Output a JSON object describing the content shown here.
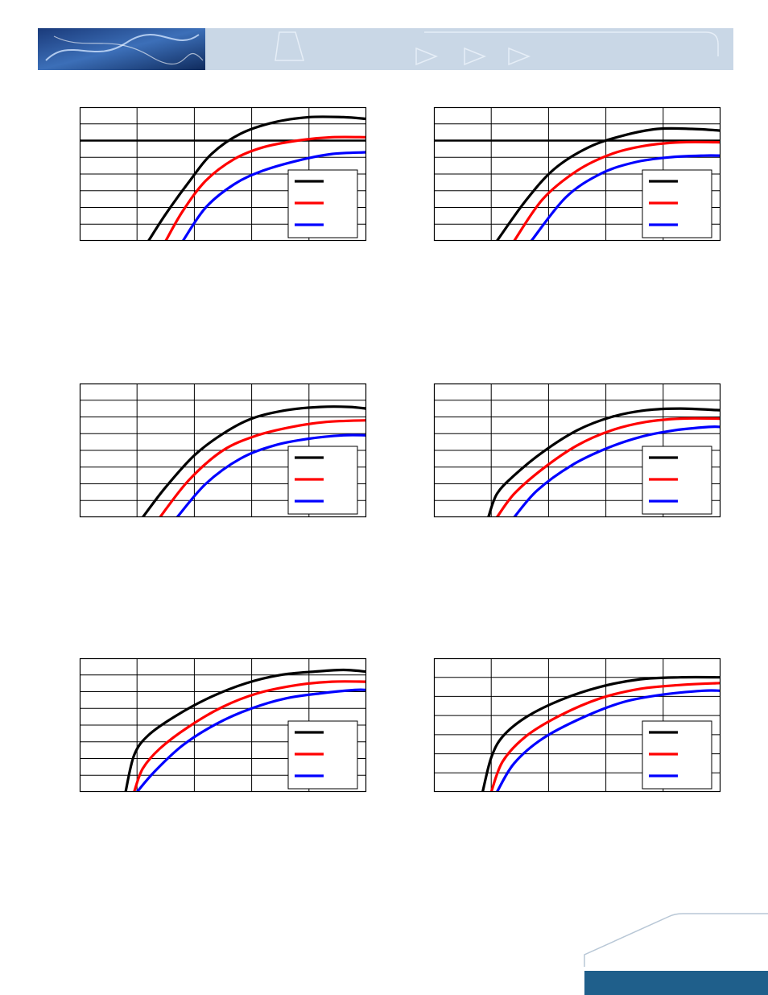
{
  "page": {
    "accent": "#1f5f8b",
    "banner_light": "#c7d6e6"
  },
  "series_colors": {
    "black": "#000000",
    "red": "#ff0000",
    "blue": "#0000ff"
  },
  "chart_data": [
    {
      "id": "chart-1",
      "type": "line",
      "xlim": [
        0,
        5
      ],
      "ylim": [
        0,
        8
      ],
      "x_divisions": 5,
      "y_divisions": 8,
      "reference_line": 6,
      "grid": true,
      "legend": "bottom-right",
      "series": [
        {
          "color": "black",
          "x": [
            1.2,
            1.5,
            1.9,
            2.3,
            2.8,
            3.4,
            4.0,
            4.6,
            5.0
          ],
          "y": [
            0,
            1.6,
            3.5,
            5.2,
            6.4,
            7.1,
            7.4,
            7.4,
            7.3
          ]
        },
        {
          "color": "red",
          "x": [
            1.5,
            1.8,
            2.2,
            2.7,
            3.2,
            3.8,
            4.4,
            5.0
          ],
          "y": [
            0,
            1.8,
            3.6,
            4.9,
            5.6,
            6.0,
            6.2,
            6.2
          ]
        },
        {
          "color": "blue",
          "x": [
            1.8,
            2.2,
            2.7,
            3.2,
            3.8,
            4.4,
            5.0
          ],
          "y": [
            0,
            2.0,
            3.4,
            4.2,
            4.8,
            5.2,
            5.3
          ]
        }
      ]
    },
    {
      "id": "chart-2",
      "type": "line",
      "xlim": [
        0,
        5
      ],
      "ylim": [
        0,
        8
      ],
      "x_divisions": 5,
      "y_divisions": 8,
      "reference_line": 6,
      "grid": true,
      "legend": "bottom-right",
      "series": [
        {
          "color": "black",
          "x": [
            1.1,
            1.6,
            2.1,
            2.7,
            3.3,
            3.9,
            4.5,
            5.0
          ],
          "y": [
            0,
            2.4,
            4.3,
            5.6,
            6.3,
            6.7,
            6.7,
            6.6
          ]
        },
        {
          "color": "red",
          "x": [
            1.4,
            1.9,
            2.5,
            3.1,
            3.7,
            4.3,
            5.0
          ],
          "y": [
            0,
            2.5,
            4.2,
            5.2,
            5.7,
            5.9,
            5.9
          ]
        },
        {
          "color": "blue",
          "x": [
            1.7,
            2.3,
            2.9,
            3.5,
            4.1,
            4.7,
            5.0
          ],
          "y": [
            0,
            2.6,
            4.0,
            4.7,
            5.0,
            5.1,
            5.1
          ]
        }
      ]
    },
    {
      "id": "chart-3",
      "type": "line",
      "xlim": [
        0,
        5
      ],
      "ylim": [
        0,
        8
      ],
      "x_divisions": 5,
      "y_divisions": 8,
      "grid": true,
      "legend": "bottom-right",
      "series": [
        {
          "color": "black",
          "x": [
            1.1,
            1.5,
            2.0,
            2.5,
            3.0,
            3.6,
            4.2,
            4.7,
            5.0
          ],
          "y": [
            0,
            1.8,
            3.7,
            5.0,
            5.9,
            6.4,
            6.6,
            6.6,
            6.5
          ]
        },
        {
          "color": "red",
          "x": [
            1.4,
            1.9,
            2.5,
            3.1,
            3.7,
            4.3,
            5.0
          ],
          "y": [
            0,
            2.2,
            4.0,
            4.9,
            5.4,
            5.7,
            5.8
          ]
        },
        {
          "color": "blue",
          "x": [
            1.7,
            2.2,
            2.8,
            3.4,
            4.0,
            4.6,
            5.0
          ],
          "y": [
            0,
            2.0,
            3.5,
            4.3,
            4.7,
            4.9,
            4.9
          ]
        }
      ]
    },
    {
      "id": "chart-4",
      "type": "line",
      "xlim": [
        0,
        5
      ],
      "ylim": [
        0,
        8
      ],
      "x_divisions": 5,
      "y_divisions": 8,
      "grid": true,
      "legend": "bottom-right",
      "series": [
        {
          "color": "black",
          "x": [
            0.95,
            1.1,
            1.4,
            1.9,
            2.5,
            3.1,
            3.7,
            4.3,
            5.0
          ],
          "y": [
            0,
            1.4,
            2.5,
            3.9,
            5.2,
            6.0,
            6.4,
            6.5,
            6.4
          ]
        },
        {
          "color": "red",
          "x": [
            1.1,
            1.4,
            1.9,
            2.5,
            3.1,
            3.7,
            4.3,
            5.0
          ],
          "y": [
            0,
            1.4,
            2.9,
            4.3,
            5.2,
            5.7,
            5.9,
            5.9
          ]
        },
        {
          "color": "blue",
          "x": [
            1.4,
            1.8,
            2.4,
            3.0,
            3.6,
            4.2,
            4.8,
            5.0
          ],
          "y": [
            0,
            1.6,
            3.1,
            4.1,
            4.8,
            5.2,
            5.4,
            5.4
          ]
        }
      ]
    },
    {
      "id": "chart-5",
      "type": "line",
      "xlim": [
        0,
        5
      ],
      "ylim": [
        0,
        8
      ],
      "x_divisions": 5,
      "y_divisions": 8,
      "grid": true,
      "legend": "bottom-right",
      "series": [
        {
          "color": "black",
          "x": [
            0.8,
            0.95,
            1.2,
            1.7,
            2.3,
            2.9,
            3.5,
            4.1,
            4.6,
            5.0
          ],
          "y": [
            0,
            2.2,
            3.4,
            4.6,
            5.7,
            6.5,
            7.0,
            7.2,
            7.3,
            7.2
          ]
        },
        {
          "color": "red",
          "x": [
            0.95,
            1.1,
            1.4,
            1.9,
            2.5,
            3.1,
            3.8,
            4.4,
            5.0
          ],
          "y": [
            0,
            1.4,
            2.6,
            3.9,
            5.1,
            5.9,
            6.4,
            6.6,
            6.6
          ]
        },
        {
          "color": "blue",
          "x": [
            1.0,
            1.3,
            1.8,
            2.4,
            3.0,
            3.6,
            4.2,
            4.8,
            5.0
          ],
          "y": [
            0,
            1.2,
            2.8,
            4.1,
            5.0,
            5.6,
            5.9,
            6.1,
            6.1
          ]
        }
      ]
    },
    {
      "id": "chart-6",
      "type": "line",
      "xlim": [
        0,
        5
      ],
      "ylim": [
        0,
        7
      ],
      "x_divisions": 5,
      "y_divisions": 7,
      "grid": true,
      "legend": "bottom-right",
      "series": [
        {
          "color": "black",
          "x": [
            0.85,
            1.0,
            1.2,
            1.6,
            2.2,
            2.9,
            3.6,
            4.3,
            5.0
          ],
          "y": [
            0,
            1.8,
            2.9,
            3.9,
            4.8,
            5.5,
            5.9,
            6.0,
            6.0
          ]
        },
        {
          "color": "red",
          "x": [
            1.0,
            1.2,
            1.6,
            2.2,
            2.9,
            3.6,
            4.3,
            5.0
          ],
          "y": [
            0,
            1.6,
            2.9,
            4.0,
            4.9,
            5.4,
            5.6,
            5.7
          ]
        },
        {
          "color": "blue",
          "x": [
            1.1,
            1.4,
            1.9,
            2.6,
            3.3,
            4.0,
            4.7,
            5.0
          ],
          "y": [
            0,
            1.5,
            2.8,
            3.9,
            4.7,
            5.1,
            5.3,
            5.3
          ]
        }
      ]
    }
  ]
}
